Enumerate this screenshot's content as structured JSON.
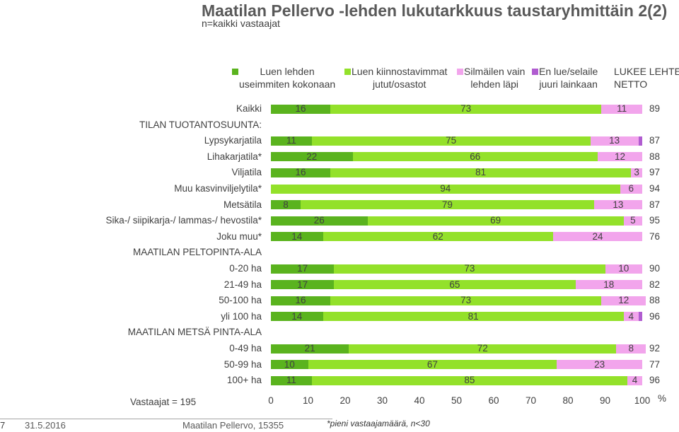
{
  "header": {
    "title": "Maatilan Pellervo -lehden lukutarkkuus taustaryhmittäin 2(2)",
    "subtitle": "n=kaikki vastaajat"
  },
  "chart_data": {
    "type": "bar",
    "orientation": "horizontal",
    "stacked": true,
    "xlim": [
      0,
      100
    ],
    "x_ticks": [
      "0",
      "10",
      "20",
      "30",
      "40",
      "50",
      "60",
      "70",
      "80",
      "90",
      "100"
    ],
    "x_unit": "%",
    "series": [
      {
        "name": "Luen lehden useimmiten kokonaan",
        "color": "#5ab31e"
      },
      {
        "name": "Luen kiinnostavimmat jutut/osastot",
        "color": "#93e12a"
      },
      {
        "name": "Silmäilen vain lehden läpi",
        "color": "#f2a5ec"
      },
      {
        "name": "En lue/selaile juuri lainkaan",
        "color": "#b05cd0"
      }
    ],
    "netto_header": "LUKEE LEHTEÄ NETTO",
    "rows": [
      {
        "label": "Kaikki",
        "values": [
          16,
          73,
          11,
          0
        ],
        "labels": [
          "16",
          "73",
          "11",
          ""
        ],
        "netto": "89"
      },
      {
        "label": "TILAN TUOTANTOSUUNTA:",
        "header": true
      },
      {
        "label": "Lypsykarjatila",
        "values": [
          11,
          75,
          13,
          1
        ],
        "labels": [
          "11",
          "75",
          "13",
          ""
        ],
        "netto": "87"
      },
      {
        "label": "Lihakarjatila*",
        "values": [
          22,
          66,
          12,
          0
        ],
        "labels": [
          "22",
          "66",
          "12",
          ""
        ],
        "netto": "88"
      },
      {
        "label": "Viljatila",
        "values": [
          16,
          81,
          3,
          0
        ],
        "labels": [
          "16",
          "81",
          "3",
          ""
        ],
        "netto": "97"
      },
      {
        "label": "Muu kasvinviljelytila*",
        "values": [
          0,
          94,
          6,
          0
        ],
        "labels": [
          "",
          "94",
          "6",
          ""
        ],
        "netto": "94"
      },
      {
        "label": "Metsätila",
        "values": [
          8,
          79,
          13,
          0
        ],
        "labels": [
          "8",
          "79",
          "13",
          ""
        ],
        "netto": "87"
      },
      {
        "label": "Sika-/ siipikarja-/ lammas-/ hevostila*",
        "values": [
          26,
          69,
          5,
          0
        ],
        "labels": [
          "26",
          "69",
          "5",
          ""
        ],
        "netto": "95"
      },
      {
        "label": "Joku muu*",
        "values": [
          14,
          62,
          24,
          0
        ],
        "labels": [
          "14",
          "62",
          "24",
          ""
        ],
        "netto": "76"
      },
      {
        "label": "MAATILAN PELTOPINTA-ALA",
        "header": true
      },
      {
        "label": "0-20 ha",
        "values": [
          17,
          73,
          10,
          0
        ],
        "labels": [
          "17",
          "73",
          "10",
          ""
        ],
        "netto": "90"
      },
      {
        "label": "21-49 ha",
        "values": [
          17,
          65,
          18,
          0
        ],
        "labels": [
          "17",
          "65",
          "18",
          ""
        ],
        "netto": "82"
      },
      {
        "label": "50-100 ha",
        "values": [
          16,
          73,
          12,
          0
        ],
        "labels": [
          "16",
          "73",
          "12",
          ""
        ],
        "netto": "88"
      },
      {
        "label": "yli 100 ha",
        "values": [
          14,
          81,
          4,
          1
        ],
        "labels": [
          "14",
          "81",
          "4",
          ""
        ],
        "netto": "96"
      },
      {
        "label": "MAATILAN METSÄ PINTA-ALA",
        "header": true
      },
      {
        "label": "0-49 ha",
        "values": [
          21,
          72,
          8,
          0
        ],
        "labels": [
          "21",
          "72",
          "8",
          ""
        ],
        "netto": "92"
      },
      {
        "label": "50-99 ha",
        "values": [
          10,
          67,
          23,
          0
        ],
        "labels": [
          "10",
          "67",
          "23",
          ""
        ],
        "netto": "77"
      },
      {
        "label": "100+ ha",
        "values": [
          11,
          85,
          4,
          0
        ],
        "labels": [
          "11",
          "85",
          "4",
          ""
        ],
        "netto": "96"
      }
    ]
  },
  "legend": {
    "items": [
      {
        "line1": "Luen lehden",
        "line2": "useimmiten kokonaan",
        "color": "#5ab31e"
      },
      {
        "line1": "Luen kiinnostavimmat",
        "line2": "jutut/osastot",
        "color": "#93e12a"
      },
      {
        "line1": "Silmäilen vain",
        "line2": "lehden läpi",
        "color": "#f2a5ec"
      },
      {
        "line1": "En lue/selaile",
        "line2": "juuri lainkaan",
        "color": "#b05cd0"
      }
    ],
    "netto_line1": "LUKEE LEHTEÄ",
    "netto_line2": "NETTO"
  },
  "footer": {
    "respondents": "Vastaajat = 195",
    "page_number": "7",
    "date": "31.5.2016",
    "source": "Maatilan Pellervo, 15355",
    "note": "*pieni vastaajamäärä, n<30"
  }
}
